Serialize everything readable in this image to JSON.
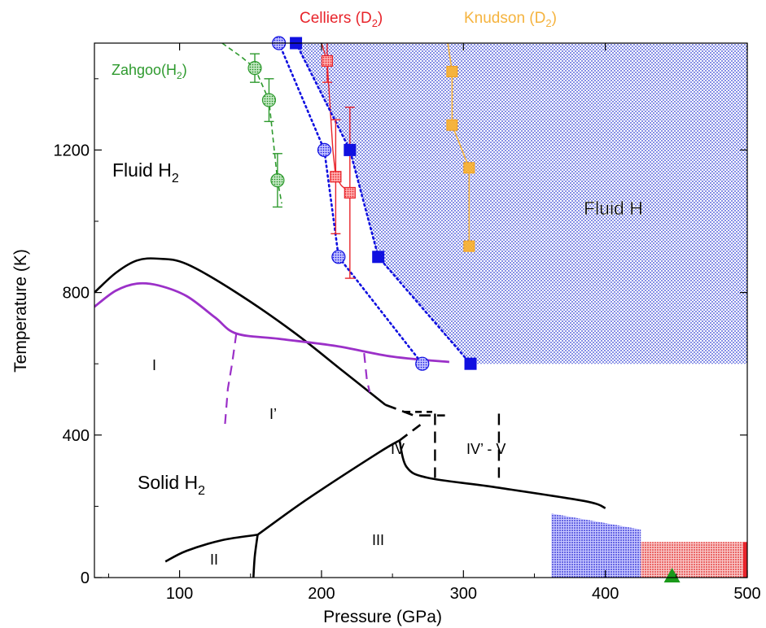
{
  "chart_data": {
    "type": "scatter",
    "xlabel": "Pressure (GPa)",
    "ylabel": "Temperature (K)",
    "xlim": [
      40,
      500
    ],
    "ylim": [
      0,
      1500
    ],
    "xticks": [
      100,
      200,
      300,
      400,
      500
    ],
    "yticks": [
      0,
      400,
      800,
      1200
    ],
    "colors": {
      "zahgoo": "#2e9a2e",
      "celliers": "#e8242b",
      "knudson": "#f5b33e",
      "blue": "#1010e0",
      "purple": "#9b30c8",
      "black": "#000000",
      "fluid_h_fill": "#1a2ad0",
      "red_fill": "#e03030"
    },
    "legend": {
      "celliers_main": "Celliers (D",
      "celliers_sub": "2",
      "celliers_end": ")",
      "knudson_main": "Knudson (D",
      "knudson_sub": "2",
      "knudson_end": ")",
      "zahgoo_main": "Zahgoo(H",
      "zahgoo_sub": "2",
      "zahgoo_end": ")"
    },
    "annotations": {
      "fluid_h2_main": "Fluid H",
      "fluid_h2_sub": "2",
      "fluid_h": "Fluid H",
      "solid_h2_main": "Solid H",
      "solid_h2_sub": "2",
      "phase_I": "I",
      "phase_I_prime": "I’",
      "phase_II": "II",
      "phase_III": "III",
      "phase_IV": "IV",
      "phase_IV_prime_V": "IV’ - V"
    },
    "fluid_h_region": [
      [
        172,
        1500
      ],
      [
        500,
        1500
      ],
      [
        500,
        600
      ],
      [
        305,
        600
      ],
      [
        240,
        900
      ],
      [
        220,
        1200
      ],
      [
        182,
        1500
      ]
    ],
    "zahgoo": {
      "name": "Zahgoo(H2)",
      "points": [
        {
          "x": 153,
          "y": 1430,
          "err": 40
        },
        {
          "x": 163,
          "y": 1340,
          "err": 60
        },
        {
          "x": 169,
          "y": 1115,
          "err": 75
        }
      ],
      "line": [
        [
          130,
          1500
        ],
        [
          144,
          1460
        ],
        [
          153,
          1430
        ],
        [
          163,
          1340
        ],
        [
          169,
          1115
        ],
        [
          172,
          1050
        ]
      ]
    },
    "celliers": {
      "name": "Celliers (D2)",
      "points": [
        {
          "x": 204,
          "y": 1450,
          "err": 60
        },
        {
          "x": 210,
          "y": 1125,
          "err": 160
        },
        {
          "x": 220,
          "y": 1080,
          "err": 240
        }
      ],
      "line": [
        [
          200,
          1500
        ],
        [
          204,
          1450
        ],
        [
          208,
          1200
        ],
        [
          210,
          1125
        ],
        [
          214,
          1100
        ],
        [
          220,
          1080
        ]
      ]
    },
    "knudson": {
      "name": "Knudson (D2)",
      "points": [
        {
          "x": 292,
          "y": 1420
        },
        {
          "x": 292,
          "y": 1270
        },
        {
          "x": 304,
          "y": 1150
        },
        {
          "x": 304,
          "y": 930
        }
      ],
      "line": [
        [
          289,
          1500
        ],
        [
          292,
          1420
        ],
        [
          292,
          1270
        ],
        [
          304,
          1150
        ],
        [
          304,
          930
        ]
      ]
    },
    "blue_circles": {
      "points": [
        {
          "x": 170,
          "y": 1500
        },
        {
          "x": 202,
          "y": 1200
        },
        {
          "x": 212,
          "y": 900
        },
        {
          "x": 271,
          "y": 600
        }
      ],
      "line": [
        [
          170,
          1500
        ],
        [
          202,
          1200
        ],
        [
          212,
          900
        ],
        [
          271,
          600
        ]
      ]
    },
    "blue_squares": {
      "points": [
        {
          "x": 182,
          "y": 1500
        },
        {
          "x": 220,
          "y": 1200
        },
        {
          "x": 240,
          "y": 900
        },
        {
          "x": 305,
          "y": 600
        }
      ],
      "line": [
        [
          182,
          1500
        ],
        [
          220,
          1200
        ],
        [
          240,
          900
        ],
        [
          305,
          600
        ]
      ]
    },
    "purple_melting": [
      [
        40,
        760
      ],
      [
        55,
        805
      ],
      [
        70,
        825
      ],
      [
        85,
        820
      ],
      [
        105,
        790
      ],
      [
        125,
        730
      ],
      [
        140,
        685
      ],
      [
        170,
        670
      ],
      [
        210,
        650
      ],
      [
        250,
        620
      ],
      [
        290,
        605
      ]
    ],
    "purple_dashed_1": [
      [
        140,
        685
      ],
      [
        137,
        600
      ],
      [
        134,
        530
      ],
      [
        132,
        430
      ]
    ],
    "purple_dashed_2": [
      [
        230,
        630
      ],
      [
        232,
        555
      ],
      [
        234,
        520
      ]
    ],
    "black_melting": [
      [
        40,
        800
      ],
      [
        55,
        855
      ],
      [
        70,
        890
      ],
      [
        85,
        895
      ],
      [
        105,
        880
      ],
      [
        140,
        800
      ],
      [
        180,
        690
      ],
      [
        215,
        580
      ],
      [
        245,
        485
      ]
    ],
    "black_dashed_melting": [
      [
        245,
        485
      ],
      [
        265,
        455
      ],
      [
        287,
        455
      ]
    ],
    "black_dashed_vertical_1": [
      [
        280,
        460
      ],
      [
        280,
        280
      ]
    ],
    "black_dashed_vertical_2": [
      [
        325,
        460
      ],
      [
        325,
        280
      ]
    ],
    "black_dashed_upper": [
      [
        258,
        465
      ],
      [
        278,
        465
      ]
    ],
    "black_II_III": [
      [
        90,
        45
      ],
      [
        105,
        75
      ],
      [
        130,
        105
      ],
      [
        155,
        120
      ]
    ],
    "black_II_III_vertical": [
      [
        152,
        0
      ],
      [
        153,
        60
      ],
      [
        155,
        120
      ]
    ],
    "black_III_IV": [
      [
        155,
        120
      ],
      [
        190,
        220
      ],
      [
        240,
        350
      ],
      [
        255,
        385
      ]
    ],
    "black_IV_upper_dashed": [
      [
        255,
        385
      ],
      [
        270,
        430
      ]
    ],
    "black_III_boundary": [
      [
        255,
        385
      ],
      [
        260,
        310
      ],
      [
        275,
        280
      ],
      [
        320,
        255
      ],
      [
        385,
        215
      ],
      [
        400,
        195
      ]
    ],
    "blue_band": [
      [
        362,
        180
      ],
      [
        425,
        135
      ],
      [
        425,
        0
      ],
      [
        362,
        0
      ]
    ],
    "red_band": [
      [
        425,
        0
      ],
      [
        425,
        100
      ],
      [
        497,
        100
      ],
      [
        497,
        0
      ]
    ],
    "red_strip": [
      [
        497,
        0
      ],
      [
        497,
        100
      ],
      [
        500,
        100
      ],
      [
        500,
        0
      ]
    ],
    "green_triangle": {
      "x": 447,
      "y": 0
    }
  }
}
